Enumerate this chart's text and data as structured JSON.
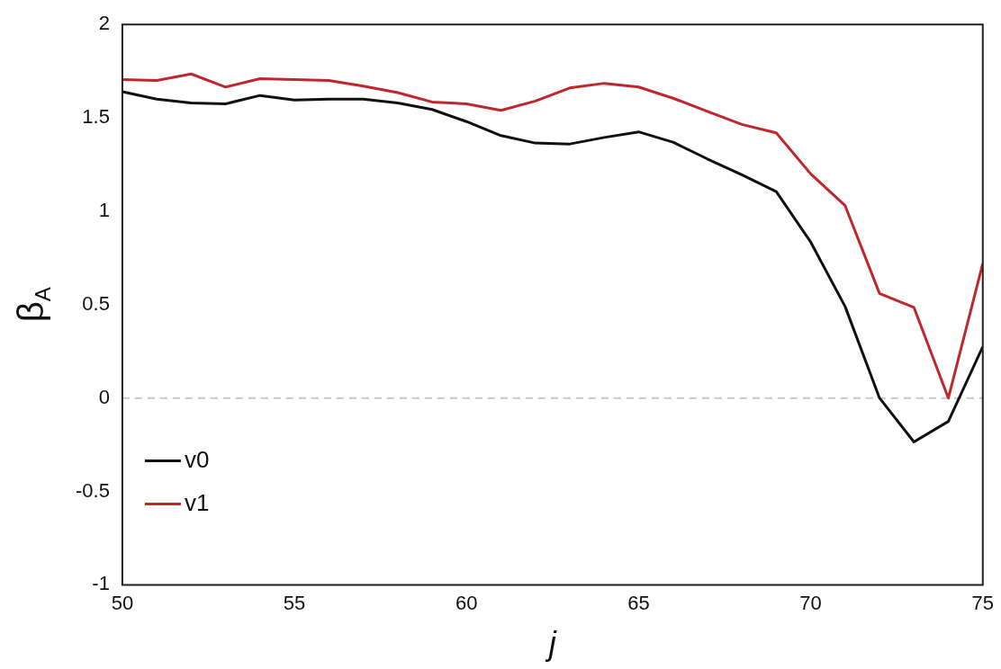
{
  "chart_data": {
    "type": "line",
    "xlabel": "j",
    "ylabel": "β$_{A}$",
    "x": [
      50,
      51,
      52,
      53,
      54,
      55,
      56,
      57,
      58,
      59,
      60,
      61,
      62,
      63,
      64,
      65,
      66,
      67,
      68,
      69,
      70,
      71,
      72,
      73,
      74,
      75
    ],
    "series": [
      {
        "name": "v0",
        "color": "#111111",
        "values": [
          1.64,
          1.6,
          1.58,
          1.575,
          1.62,
          1.595,
          1.6,
          1.6,
          1.58,
          1.545,
          1.48,
          1.405,
          1.365,
          1.36,
          1.395,
          1.425,
          1.37,
          1.28,
          1.195,
          1.105,
          0.835,
          0.49,
          0,
          -0.235,
          -0.125,
          0.275
        ]
      },
      {
        "name": "v1",
        "color": "#c0272d",
        "values": [
          1.705,
          1.7,
          1.735,
          1.665,
          1.71,
          1.705,
          1.7,
          1.67,
          1.635,
          1.585,
          1.575,
          1.54,
          1.59,
          1.66,
          1.685,
          1.665,
          1.605,
          1.535,
          1.465,
          1.42,
          1.2,
          1.03,
          0.56,
          0.485,
          0,
          0.72
        ]
      }
    ],
    "xlim": [
      50,
      75
    ],
    "xticks": [
      50,
      55,
      60,
      65,
      70,
      75
    ],
    "ylim": [
      -1,
      2
    ],
    "yticks": [
      {
        "value": -1,
        "label": "-1"
      },
      {
        "value": -0.5,
        "label": "-0.5"
      },
      {
        "value": 0,
        "label": "0"
      },
      {
        "value": 0.5,
        "label": "0.5"
      },
      {
        "value": 1,
        "label": "1"
      },
      {
        "value": 1.5,
        "label": "1.5"
      },
      {
        "value": 2,
        "label": "2"
      }
    ],
    "ref_lines": [
      {
        "axis": "y",
        "value": 0,
        "color": "#c8c8c8",
        "line_style": "dashed"
      }
    ],
    "legend": "bottom left",
    "grid": false,
    "marker": "none",
    "line_style": "solid"
  }
}
